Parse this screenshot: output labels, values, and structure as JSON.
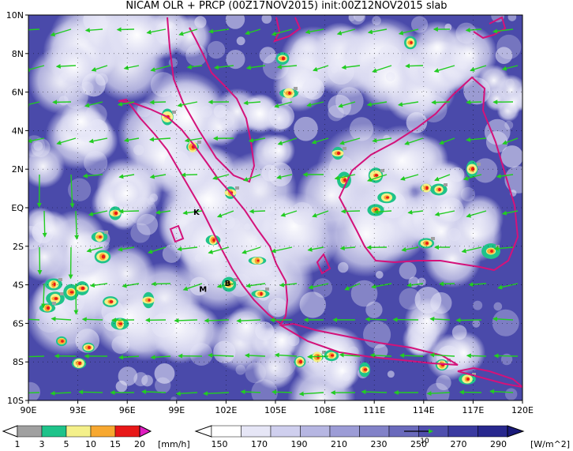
{
  "title": "NICAM OLR + PRCP (00Z17NOV2015) init:00Z12NOV2015 slab",
  "axes": {
    "lat_labels": [
      "10N",
      "8N",
      "6N",
      "4N",
      "2N",
      "EQ",
      "2S",
      "4S",
      "6S",
      "8S",
      "10S"
    ],
    "lon_labels": [
      "90E",
      "93E",
      "96E",
      "99E",
      "102E",
      "105E",
      "108E",
      "111E",
      "114E",
      "117E",
      "120E"
    ]
  },
  "markers": [
    {
      "label": "K",
      "lon": 100.2,
      "lat": -0.2
    },
    {
      "label": "M",
      "lon": 100.6,
      "lat": -4.2
    },
    {
      "label": "B",
      "lon": 102.1,
      "lat": -3.9
    }
  ],
  "precip_colorbar": {
    "labels": [
      "1",
      "3",
      "5",
      "10",
      "15",
      "20"
    ],
    "unit": "[mm/h]",
    "colors": [
      "#a0a0a0",
      "#1fc38a",
      "#f4f08a",
      "#f7a830",
      "#e81818",
      "#e01cc0"
    ]
  },
  "olr_colorbar": {
    "labels": [
      "150",
      "170",
      "190",
      "210",
      "230",
      "250",
      "270",
      "290"
    ],
    "unit": "[W/m^2]",
    "vector_ref": "10",
    "colors": [
      "#ffffff",
      "#e6e6f6",
      "#cfcfee",
      "#b6b6e2",
      "#9c9cd6",
      "#8282c8",
      "#6a6abc",
      "#4f4fae",
      "#3a3aa0",
      "#28288e",
      "#1a1a7a"
    ]
  },
  "colors": {
    "coastline": "#d4127a",
    "wind_vectors": "#22cc22",
    "grid": "#000000"
  }
}
